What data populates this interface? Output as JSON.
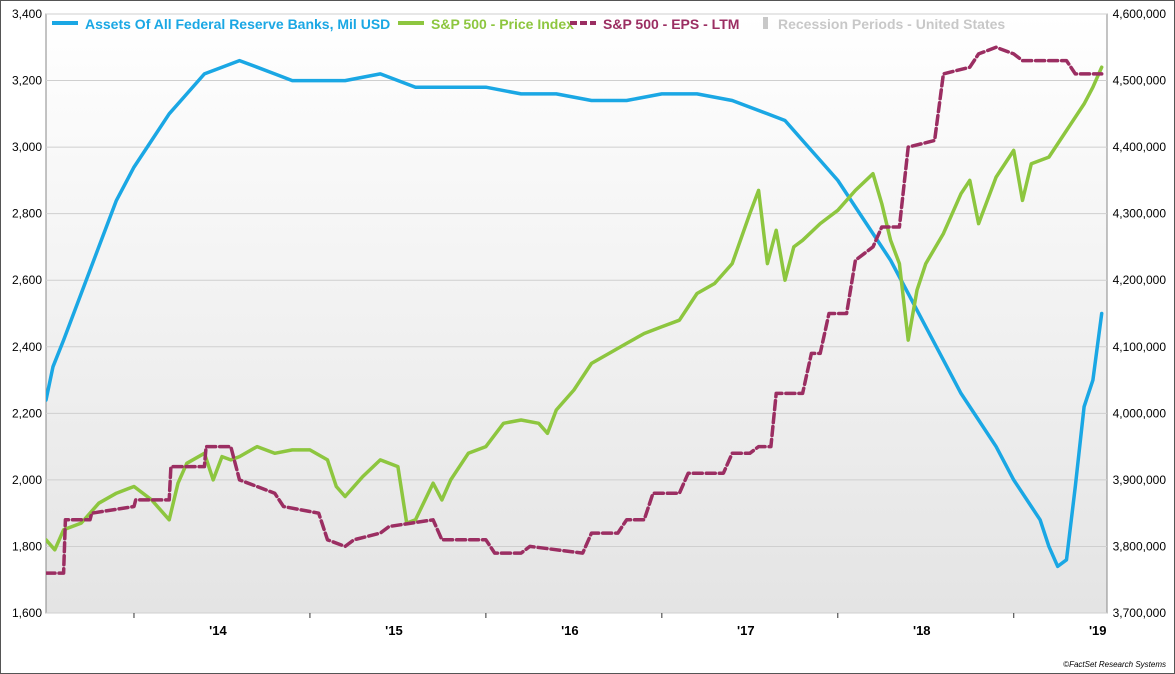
{
  "chart_data": {
    "type": "line",
    "legend_placement": "top",
    "grid": true,
    "x_ticks": [
      "'14",
      "'15",
      "'16",
      "'17",
      "'18",
      "'19"
    ],
    "x_range": [
      2013.5,
      2019.53
    ],
    "y_left": {
      "lim": [
        1600,
        3400
      ],
      "ticks": [
        1600,
        1800,
        2000,
        2200,
        2400,
        2600,
        2800,
        3000,
        3200,
        3400
      ],
      "tick_labels": [
        "1,600",
        "1,800",
        "2,000",
        "2,200",
        "2,400",
        "2,600",
        "2,800",
        "3,000",
        "3,200",
        "3,400"
      ]
    },
    "y_right": {
      "lim": [
        3700000,
        4600000
      ],
      "ticks": [
        3700000,
        3800000,
        3900000,
        4000000,
        4100000,
        4200000,
        4300000,
        4400000,
        4500000,
        4600000
      ],
      "tick_labels": [
        "3,700,000",
        "3,800,000",
        "3,900,000",
        "4,000,000",
        "4,100,000",
        "4,200,000",
        "4,300,000",
        "4,400,000",
        "4,500,000",
        "4,600,000"
      ]
    },
    "series": [
      {
        "name": "Assets Of All Federal Reserve Banks, Mil USD",
        "axis": "right",
        "color": "#1aa7e4",
        "style": "solid",
        "x": [
          2013.5,
          2013.54,
          2013.6,
          2013.7,
          2013.8,
          2013.9,
          2014.0,
          2014.1,
          2014.2,
          2014.3,
          2014.4,
          2014.5,
          2014.6,
          2014.7,
          2014.8,
          2014.9,
          2015.0,
          2015.2,
          2015.4,
          2015.6,
          2015.8,
          2016.0,
          2016.2,
          2016.4,
          2016.6,
          2016.8,
          2017.0,
          2017.2,
          2017.4,
          2017.6,
          2017.7,
          2017.8,
          2017.9,
          2018.0,
          2018.1,
          2018.2,
          2018.3,
          2018.4,
          2018.5,
          2018.6,
          2018.7,
          2018.8,
          2018.9,
          2019.0,
          2019.1,
          2019.15,
          2019.2,
          2019.25,
          2019.3,
          2019.35,
          2019.4,
          2019.45,
          2019.5
        ],
        "y": [
          4020000,
          4070000,
          4110000,
          4180000,
          4250000,
          4320000,
          4370000,
          4410000,
          4450000,
          4480000,
          4510000,
          4520000,
          4530000,
          4520000,
          4510000,
          4500000,
          4500000,
          4500000,
          4510000,
          4490000,
          4490000,
          4490000,
          4480000,
          4480000,
          4470000,
          4470000,
          4480000,
          4480000,
          4470000,
          4450000,
          4440000,
          4410000,
          4380000,
          4350000,
          4310000,
          4270000,
          4230000,
          4180000,
          4130000,
          4080000,
          4030000,
          3990000,
          3950000,
          3900000,
          3860000,
          3840000,
          3800000,
          3770000,
          3780000,
          3890000,
          4010000,
          4050000,
          4150000
        ]
      },
      {
        "name": "S&P 500 - Price Index",
        "axis": "left",
        "color": "#8dc63f",
        "style": "solid",
        "x": [
          2013.5,
          2013.55,
          2013.6,
          2013.7,
          2013.8,
          2013.9,
          2014.0,
          2014.1,
          2014.2,
          2014.25,
          2014.3,
          2014.4,
          2014.45,
          2014.5,
          2014.55,
          2014.6,
          2014.7,
          2014.8,
          2014.9,
          2015.0,
          2015.1,
          2015.15,
          2015.2,
          2015.3,
          2015.4,
          2015.5,
          2015.55,
          2015.6,
          2015.7,
          2015.75,
          2015.8,
          2015.9,
          2016.0,
          2016.1,
          2016.2,
          2016.3,
          2016.35,
          2016.4,
          2016.5,
          2016.6,
          2016.7,
          2016.8,
          2016.9,
          2017.0,
          2017.1,
          2017.2,
          2017.3,
          2017.4,
          2017.5,
          2017.55,
          2017.6,
          2017.65,
          2017.7,
          2017.75,
          2017.8,
          2017.9,
          2018.0,
          2018.1,
          2018.2,
          2018.25,
          2018.3,
          2018.35,
          2018.4,
          2018.45,
          2018.5,
          2018.6,
          2018.7,
          2018.75,
          2018.8,
          2018.9,
          2019.0,
          2019.05,
          2019.1,
          2019.2,
          2019.3,
          2019.4,
          2019.45,
          2019.5
        ],
        "y": [
          1820,
          1790,
          1850,
          1870,
          1930,
          1960,
          1980,
          1940,
          1880,
          1990,
          2050,
          2080,
          2000,
          2070,
          2060,
          2070,
          2100,
          2080,
          2090,
          2090,
          2060,
          1980,
          1950,
          2010,
          2060,
          2040,
          1870,
          1880,
          1990,
          1940,
          2000,
          2080,
          2100,
          2170,
          2180,
          2170,
          2140,
          2210,
          2270,
          2350,
          2380,
          2410,
          2440,
          2460,
          2480,
          2560,
          2590,
          2650,
          2800,
          2870,
          2650,
          2750,
          2600,
          2700,
          2720,
          2770,
          2810,
          2870,
          2920,
          2830,
          2720,
          2650,
          2420,
          2570,
          2650,
          2740,
          2860,
          2900,
          2770,
          2910,
          2990,
          2840,
          2950,
          2970,
          3050,
          3130,
          3180,
          3240
        ]
      },
      {
        "name": "S&P 500 - EPS - LTM",
        "axis": "right",
        "color": "#9b2e62",
        "style": "dashed",
        "x": [
          2013.5,
          2013.6,
          2013.61,
          2013.75,
          2013.76,
          2014.0,
          2014.01,
          2014.2,
          2014.21,
          2014.4,
          2014.41,
          2014.55,
          2014.6,
          2014.8,
          2014.85,
          2015.05,
          2015.1,
          2015.2,
          2015.25,
          2015.4,
          2015.45,
          2015.7,
          2015.75,
          2016.0,
          2016.05,
          2016.2,
          2016.25,
          2016.55,
          2016.6,
          2016.75,
          2016.8,
          2016.9,
          2016.95,
          2017.1,
          2017.15,
          2017.35,
          2017.4,
          2017.5,
          2017.55,
          2017.62,
          2017.65,
          2017.8,
          2017.85,
          2017.9,
          2017.95,
          2018.05,
          2018.1,
          2018.2,
          2018.25,
          2018.35,
          2018.4,
          2018.55,
          2018.6,
          2018.75,
          2018.8,
          2018.9,
          2019.0,
          2019.05,
          2019.2,
          2019.3,
          2019.35,
          2019.5
        ],
        "y": [
          3760000,
          3760000,
          3840000,
          3840000,
          3850000,
          3860000,
          3870000,
          3870000,
          3920000,
          3920000,
          3950000,
          3950000,
          3900000,
          3880000,
          3860000,
          3850000,
          3810000,
          3800000,
          3810000,
          3820000,
          3830000,
          3840000,
          3810000,
          3810000,
          3790000,
          3790000,
          3800000,
          3790000,
          3820000,
          3820000,
          3840000,
          3840000,
          3880000,
          3880000,
          3910000,
          3910000,
          3940000,
          3940000,
          3950000,
          3950000,
          4030000,
          4030000,
          4090000,
          4090000,
          4150000,
          4150000,
          4230000,
          4250000,
          4280000,
          4280000,
          4400000,
          4410000,
          4510000,
          4520000,
          4540000,
          4550000,
          4540000,
          4530000,
          4530000,
          4530000,
          4510000,
          4510000
        ]
      },
      {
        "name": "Recession Periods - United States",
        "axis": "none",
        "color": "#c8c8c8",
        "style": "bar",
        "x": [],
        "y": []
      }
    ],
    "credit": "©FactSet Research Systems"
  }
}
